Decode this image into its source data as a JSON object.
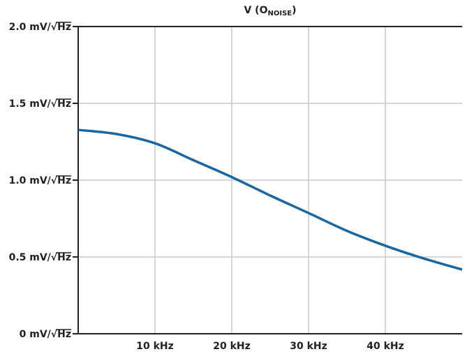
{
  "chart_data": {
    "type": "line",
    "title": [
      "V (O",
      "NOISE",
      ")"
    ],
    "x": [
      0,
      5,
      10,
      15,
      20,
      25,
      30,
      35,
      40,
      45,
      50
    ],
    "series": [
      {
        "color": "#1767a6",
        "values": [
          1.327,
          1.3,
          1.24,
          1.13,
          1.02,
          0.9,
          0.786,
          0.67,
          0.573,
          0.49,
          0.418
        ]
      }
    ],
    "xlim": [
      0,
      50
    ],
    "xticks": [
      {
        "value": 10,
        "label": "10 kHz"
      },
      {
        "value": 20,
        "label": "20 kHz"
      },
      {
        "value": 30,
        "label": "30 kHz"
      },
      {
        "value": 40,
        "label": "40 kHz"
      }
    ],
    "ylim": [
      0,
      2.0
    ],
    "yticks": [
      {
        "value": 0,
        "label": "0 mV/√Hz"
      },
      {
        "value": 0.5,
        "label": "0.5 mV/√Hz"
      },
      {
        "value": 1.0,
        "label": "1.0 mV/√Hz"
      },
      {
        "value": 1.5,
        "label": "1.5 mV/√Hz"
      },
      {
        "value": 2.0,
        "label": "2.0 mV/√Hz"
      }
    ],
    "grid": true
  }
}
